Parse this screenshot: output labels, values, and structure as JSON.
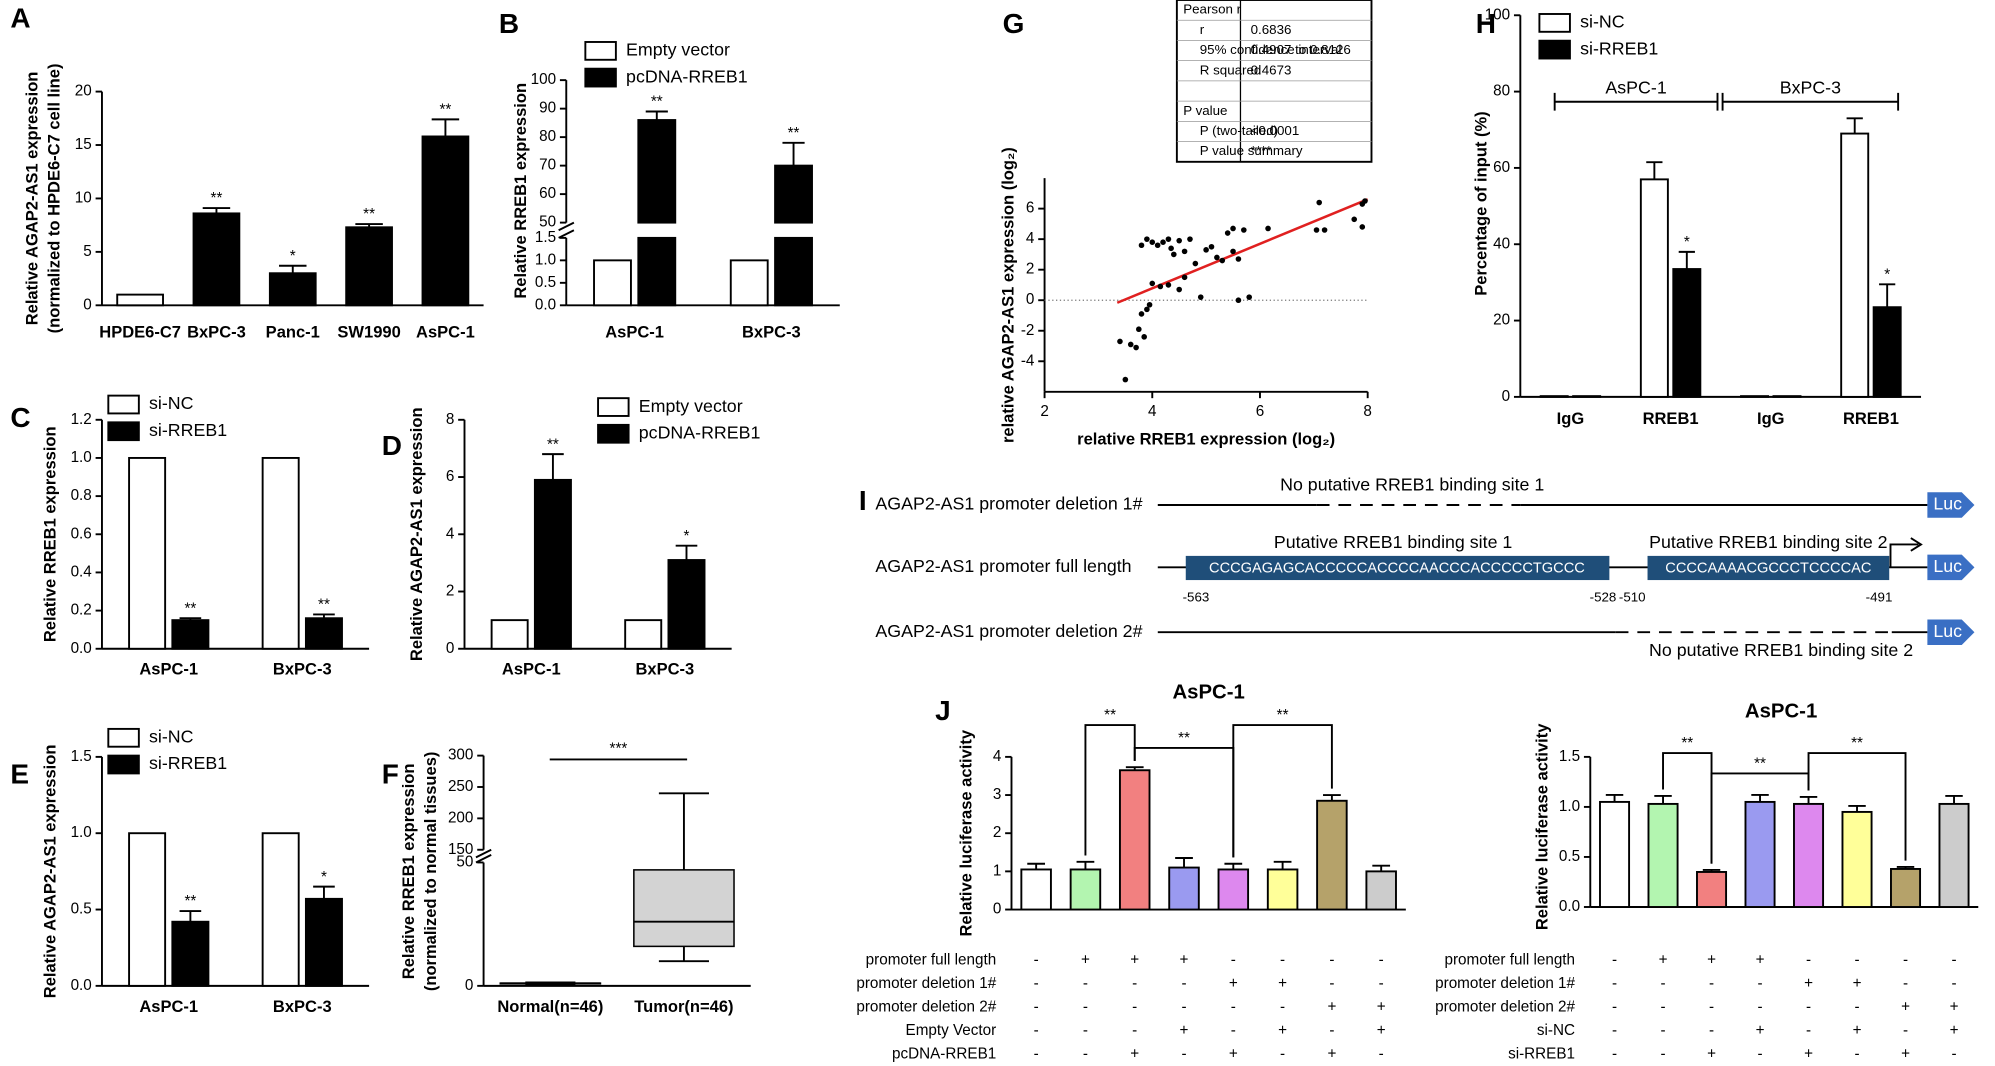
{
  "chart_data": [
    {
      "type": "bar",
      "panel": "A",
      "ylabel": [
        "Relative AGAP2-AS1 expression",
        "(normalized to HPDE6-C7 cell line)"
      ],
      "categories": [
        "HPDE6-C7",
        "BxPC-3",
        "Panc-1",
        "SW1990",
        "AsPC-1"
      ],
      "values": [
        1,
        8.6,
        3.0,
        7.3,
        15.8
      ],
      "errors": [
        null,
        0.5,
        0.7,
        0.3,
        1.6
      ],
      "stars": [
        null,
        "**",
        "*",
        "**",
        "**"
      ],
      "colors": [
        "#ffffff",
        "#000000",
        "#000000",
        "#000000",
        "#000000"
      ],
      "ylim": [
        0,
        20
      ],
      "yticks": [
        0,
        5,
        10,
        15,
        20
      ]
    },
    {
      "type": "bar",
      "panel": "B",
      "ylabel": "Relative RREB1 expression",
      "categories": [
        "AsPC-1",
        "BxPC-3"
      ],
      "series": [
        {
          "name": "Empty vector",
          "color": "#ffffff",
          "values": [
            1,
            1
          ]
        },
        {
          "name": "pcDNA-RREB1",
          "color": "#000000",
          "values": [
            86,
            70
          ],
          "errors": [
            3,
            8
          ],
          "stars": [
            "**",
            "**"
          ]
        }
      ],
      "ylim": [
        0,
        100
      ],
      "ybreak": [
        1.5,
        50
      ],
      "yticks": [
        {
          "value": 0,
          "label": "0.0"
        },
        0.5,
        {
          "value": 1,
          "label": "1.0"
        },
        1.5,
        50,
        60,
        70,
        80,
        90,
        100
      ]
    },
    {
      "type": "bar",
      "panel": "C",
      "ylabel": "Relative RREB1 expression",
      "categories": [
        "AsPC-1",
        "BxPC-3"
      ],
      "series": [
        {
          "name": "si-NC",
          "color": "#ffffff",
          "values": [
            1,
            1
          ]
        },
        {
          "name": "si-RREB1",
          "color": "#000000",
          "values": [
            0.15,
            0.16
          ],
          "errors": [
            0.01,
            0.02
          ],
          "stars": [
            "**",
            "**"
          ]
        }
      ],
      "ylim": [
        0,
        1.2
      ],
      "yticks": [
        {
          "value": 0,
          "label": "0.0"
        },
        0.2,
        0.4,
        0.6,
        0.8,
        {
          "value": 1,
          "label": "1.0"
        },
        1.2
      ]
    },
    {
      "type": "bar",
      "panel": "D",
      "ylabel": "Relative AGAP2-AS1 expression",
      "categories": [
        "AsPC-1",
        "BxPC-3"
      ],
      "series": [
        {
          "name": "Empty vector",
          "color": "#ffffff",
          "values": [
            1,
            1
          ]
        },
        {
          "name": "pcDNA-RREB1",
          "color": "#000000",
          "values": [
            5.9,
            3.1
          ],
          "errors": [
            0.9,
            0.5
          ],
          "stars": [
            "**",
            "*"
          ]
        }
      ],
      "ylim": [
        0,
        8
      ],
      "yticks": [
        0,
        2,
        4,
        6,
        8
      ]
    },
    {
      "type": "bar",
      "panel": "E",
      "ylabel": "Relative AGAP2-AS1 expression",
      "categories": [
        "AsPC-1",
        "BxPC-3"
      ],
      "series": [
        {
          "name": "si-NC",
          "color": "#ffffff",
          "values": [
            1,
            1
          ]
        },
        {
          "name": "si-RREB1",
          "color": "#000000",
          "values": [
            0.42,
            0.57
          ],
          "errors": [
            0.07,
            0.08
          ],
          "stars": [
            "**",
            "*"
          ]
        }
      ],
      "ylim": [
        0,
        1.5
      ],
      "yticks": [
        {
          "value": 0,
          "label": "0.0"
        },
        0.5,
        {
          "value": 1,
          "label": "1.0"
        },
        1.5
      ]
    },
    {
      "type": "box",
      "panel": "F",
      "ylabel": [
        "Relative RREB1 expression",
        "(normalized to normal tissues)"
      ],
      "categories": [
        "Normal(n=46)",
        "Tumor(n=46)"
      ],
      "boxes": [
        {
          "min": 0.6,
          "q1": 0.9,
          "median": 1,
          "q3": 1.1,
          "max": 1.4
        },
        {
          "min": 10,
          "q1": 16,
          "median": 26,
          "q3": 47,
          "max": 240
        }
      ],
      "color": "#d3d3d3",
      "annotation": "***",
      "ylim": [
        0,
        300
      ],
      "ybreak": [
        50,
        150
      ],
      "yticks": [
        0,
        50,
        150,
        200,
        250,
        300
      ]
    },
    {
      "type": "scatter",
      "panel": "G",
      "xlabel": "relative RREB1 expression (log₂)",
      "ylabel": "relative AGAP2-AS1 expression (log₂)",
      "x": [
        3.4,
        3.5,
        3.6,
        3.7,
        3.75,
        3.85,
        3.8,
        3.9,
        3.95,
        4.0,
        3.8,
        3.9,
        4.0,
        4.1,
        4.2,
        4.3,
        4.35,
        4.4,
        4.5,
        4.6,
        4.7,
        4.15,
        4.3,
        4.5,
        4.6,
        4.8,
        4.9,
        5.0,
        5.1,
        5.2,
        5.3,
        5.4,
        5.5,
        5.5,
        5.6,
        5.6,
        5.7,
        5.8,
        6.15,
        7.05,
        7.1,
        7.2,
        7.75,
        7.9,
        7.9,
        7.95
      ],
      "y": [
        -2.7,
        -5.2,
        -2.9,
        -3.1,
        -1.9,
        -2.4,
        -0.9,
        -0.6,
        -0.3,
        1.1,
        3.6,
        4.0,
        3.8,
        3.6,
        3.8,
        4.0,
        3.4,
        3.0,
        3.9,
        3.2,
        4.0,
        0.9,
        1.0,
        0.7,
        1.5,
        2.4,
        0.2,
        3.3,
        3.5,
        2.8,
        2.6,
        4.4,
        3.2,
        4.7,
        2.7,
        0.0,
        4.6,
        0.2,
        4.7,
        4.6,
        6.4,
        4.6,
        5.3,
        4.8,
        6.3,
        6.5
      ],
      "color": "#000000",
      "fit_color": "#e02020",
      "xlim": [
        2,
        8
      ],
      "xticks": [
        2,
        4,
        6,
        8
      ],
      "ylim": [
        -6,
        8
      ],
      "yticks": [
        -4,
        -2,
        0,
        2,
        4,
        6
      ],
      "table": [
        {
          "header": "Pearson r",
          "rows": [
            [
              "r",
              "0.6836"
            ],
            [
              "95% confidence interval",
              "0.4907 to 0.8126"
            ],
            [
              "R squared",
              "0.4673"
            ]
          ]
        },
        {
          "header": "P value",
          "rows": [
            [
              "P (two-tailed)",
              "<0.0001"
            ],
            [
              "P value summary",
              "****"
            ]
          ]
        }
      ]
    },
    {
      "type": "bar",
      "panel": "H",
      "ylabel": "Percentage of input (%)",
      "categories": [
        "IgG",
        "RREB1",
        "IgG",
        "RREB1"
      ],
      "groups": [
        "AsPC-1",
        "BxPC-3"
      ],
      "series": [
        {
          "name": "si-NC",
          "color": "#ffffff",
          "values": [
            0.2,
            57,
            0.2,
            69
          ],
          "errors": [
            null,
            4.5,
            null,
            4
          ]
        },
        {
          "name": "si-RREB1",
          "color": "#000000",
          "values": [
            0.2,
            33.5,
            0.2,
            23.5
          ],
          "errors": [
            null,
            4.5,
            null,
            6
          ],
          "stars": [
            null,
            "*",
            null,
            "*"
          ]
        }
      ],
      "ylim": [
        0,
        100
      ],
      "yticks": [
        0,
        20,
        40,
        60,
        80,
        100
      ]
    },
    {
      "type": "bar",
      "panel": "J",
      "title": "AsPC-1",
      "ylabel": "Relative luciferase activity",
      "values": [
        1.05,
        1.05,
        3.65,
        1.1,
        1.05,
        1.05,
        2.85,
        1.0
      ],
      "errors": [
        0.15,
        0.2,
        0.08,
        0.25,
        0.15,
        0.2,
        0.15,
        0.15
      ],
      "colors": [
        "#ffffff",
        "#b3f5b0",
        "#f28080",
        "#9a9af0",
        "#dd88ee",
        "#ffff99",
        "#b5a26a",
        "#cccccc"
      ],
      "comparisons": [
        "**",
        "**",
        "**"
      ],
      "conditions": [
        {
          "label": "promoter full length",
          "signs": [
            "-",
            "+",
            "+",
            "+",
            "-",
            "-",
            "-",
            "-"
          ]
        },
        {
          "label": "promoter deletion 1#",
          "signs": [
            "-",
            "-",
            "-",
            "-",
            "+",
            "+",
            "-",
            "-"
          ]
        },
        {
          "label": "promoter deletion 2#",
          "signs": [
            "-",
            "-",
            "-",
            "-",
            "-",
            "-",
            "+",
            "+"
          ]
        },
        {
          "label": "Empty Vector",
          "signs": [
            "-",
            "-",
            "-",
            "+",
            "-",
            "+",
            "-",
            "+"
          ]
        },
        {
          "label": "pcDNA-RREB1",
          "signs": [
            "-",
            "-",
            "+",
            "-",
            "+",
            "-",
            "+",
            "-"
          ]
        }
      ],
      "ylim": [
        0,
        4
      ],
      "yticks": [
        0,
        1,
        2,
        3,
        4
      ]
    },
    {
      "type": "bar",
      "title": "AsPC-1",
      "ylabel": "Relative luciferase activity",
      "values": [
        1.05,
        1.03,
        0.35,
        1.05,
        1.03,
        0.95,
        0.38,
        1.03
      ],
      "errors": [
        0.07,
        0.08,
        0.02,
        0.07,
        0.07,
        0.06,
        0.02,
        0.08
      ],
      "colors": [
        "#ffffff",
        "#b3f5b0",
        "#f28080",
        "#9a9af0",
        "#dd88ee",
        "#ffff99",
        "#b5a26a",
        "#cccccc"
      ],
      "comparisons": [
        "**",
        "**",
        "**"
      ],
      "conditions": [
        {
          "label": "promoter full length",
          "signs": [
            "-",
            "+",
            "+",
            "+",
            "-",
            "-",
            "-",
            "-"
          ]
        },
        {
          "label": "promoter deletion 1#",
          "signs": [
            "-",
            "-",
            "-",
            "-",
            "+",
            "+",
            "-",
            "-"
          ]
        },
        {
          "label": "promoter deletion 2#",
          "signs": [
            "-",
            "-",
            "-",
            "-",
            "-",
            "-",
            "+",
            "+"
          ]
        },
        {
          "label": "si-NC",
          "signs": [
            "-",
            "-",
            "-",
            "+",
            "-",
            "+",
            "-",
            "+"
          ]
        },
        {
          "label": "si-RREB1",
          "signs": [
            "-",
            "-",
            "+",
            "-",
            "+",
            "-",
            "+",
            "-"
          ]
        }
      ],
      "ylim": [
        0,
        1.5
      ],
      "yticks": [
        {
          "value": 0,
          "label": "0.0"
        },
        0.5,
        {
          "value": 1,
          "label": "1.0"
        },
        1.5
      ]
    }
  ],
  "diagram": {
    "panel": "I",
    "rows": [
      {
        "label": "AGAP2-AS1 promoter deletion 1#",
        "note": "No putative RREB1 binding site 1",
        "reporter": "Luc"
      },
      {
        "label": "AGAP2-AS1 promoter full length",
        "reporter": "Luc",
        "sites": [
          {
            "name": "Putative RREB1 binding site 1",
            "sequence": "CCCGAGAGCACCCCCACCCCAACCCACCCCCTGCCC",
            "start": -563,
            "end": -528
          },
          {
            "name": "Putative RREB1 binding site 2",
            "sequence": "CCCCAAAACGCCCTCCCCAC",
            "start": -510,
            "end": -491
          }
        ]
      },
      {
        "label": "AGAP2-AS1 promoter deletion 2#",
        "note": "No putative RREB1 binding site 2",
        "reporter": "Luc"
      }
    ]
  }
}
